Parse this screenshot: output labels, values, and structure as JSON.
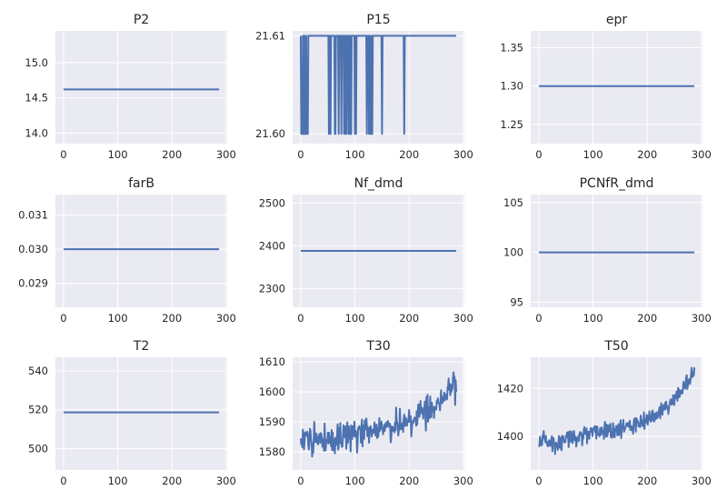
{
  "chart_data": [
    {
      "type": "line",
      "title": "P2",
      "xlim": [
        -15,
        302
      ],
      "ylim": [
        13.85,
        15.45
      ],
      "xticks": [
        0,
        100,
        200,
        300
      ],
      "yticks": [
        14.0,
        14.5,
        15.0
      ],
      "ytick_decimals": 1,
      "grid": true,
      "color": "#4c72b0",
      "pattern": "constant",
      "n": 288,
      "value": 14.62
    },
    {
      "type": "line",
      "title": "P15",
      "xlim": [
        -15,
        302
      ],
      "ylim": [
        21.599,
        21.6105
      ],
      "xticks": [
        0,
        100,
        200,
        300
      ],
      "yticks": [
        21.6,
        21.61
      ],
      "ytick_decimals": 2,
      "grid": true,
      "color": "#4c72b0",
      "pattern": "two_level",
      "n": 288,
      "high": 21.61,
      "low": 21.6,
      "low_indices": [
        1,
        2,
        3,
        5,
        7,
        9,
        11,
        12,
        13,
        52,
        55,
        63,
        64,
        70,
        75,
        80,
        83,
        84,
        88,
        91,
        93,
        100,
        102,
        122,
        126,
        129,
        130,
        132,
        150,
        191
      ]
    },
    {
      "type": "line",
      "title": "epr",
      "xlim": [
        -15,
        302
      ],
      "ylim": [
        1.225,
        1.372
      ],
      "xticks": [
        0,
        100,
        200,
        300
      ],
      "yticks": [
        1.25,
        1.3,
        1.35
      ],
      "ytick_decimals": 2,
      "grid": true,
      "color": "#4c72b0",
      "pattern": "constant",
      "n": 288,
      "value": 1.3
    },
    {
      "type": "line",
      "title": "farB",
      "xlim": [
        -15,
        302
      ],
      "ylim": [
        0.0283,
        0.0316
      ],
      "xticks": [
        0,
        100,
        200,
        300
      ],
      "yticks": [
        0.029,
        0.03,
        0.031
      ],
      "ytick_decimals": 3,
      "grid": true,
      "color": "#4c72b0",
      "pattern": "constant",
      "n": 288,
      "value": 0.03
    },
    {
      "type": "line",
      "title": "Nf_dmd",
      "xlim": [
        -15,
        302
      ],
      "ylim": [
        2256,
        2520
      ],
      "xticks": [
        0,
        100,
        200,
        300
      ],
      "yticks": [
        2300,
        2400,
        2500
      ],
      "ytick_decimals": 0,
      "grid": true,
      "color": "#4c72b0",
      "pattern": "constant",
      "n": 288,
      "value": 2388
    },
    {
      "type": "line",
      "title": "PCNfR_dmd",
      "xlim": [
        -15,
        302
      ],
      "ylim": [
        94.5,
        105.8
      ],
      "xticks": [
        0,
        100,
        200,
        300
      ],
      "yticks": [
        95,
        100,
        105
      ],
      "ytick_decimals": 0,
      "grid": true,
      "color": "#4c72b0",
      "pattern": "constant",
      "n": 288,
      "value": 100
    },
    {
      "type": "line",
      "title": "T2",
      "xlim": [
        -15,
        302
      ],
      "ylim": [
        489,
        547
      ],
      "xticks": [
        0,
        100,
        200,
        300
      ],
      "yticks": [
        500,
        520,
        540
      ],
      "ytick_decimals": 0,
      "grid": true,
      "color": "#4c72b0",
      "pattern": "constant",
      "n": 288,
      "value": 518.67
    },
    {
      "type": "line",
      "title": "T30",
      "xlim": [
        -15,
        302
      ],
      "ylim": [
        1574,
        1611.5
      ],
      "xticks": [
        0,
        100,
        200,
        300
      ],
      "yticks": [
        1580,
        1590,
        1600,
        1610
      ],
      "ytick_decimals": 0,
      "grid": true,
      "color": "#4c72b0",
      "pattern": "noisy_trend",
      "n": 288,
      "seed": 30,
      "noise": 4.8,
      "trend_points": [
        [
          0,
          1584
        ],
        [
          50,
          1584
        ],
        [
          100,
          1586
        ],
        [
          150,
          1588
        ],
        [
          200,
          1590
        ],
        [
          250,
          1596
        ],
        [
          287,
          1602
        ]
      ]
    },
    {
      "type": "line",
      "title": "T50",
      "xlim": [
        -15,
        302
      ],
      "ylim": [
        1386,
        1433
      ],
      "xticks": [
        0,
        100,
        200,
        300
      ],
      "yticks": [
        1400,
        1420
      ],
      "ytick_decimals": 0,
      "grid": true,
      "color": "#4c72b0",
      "pattern": "noisy_trend",
      "n": 288,
      "seed": 50,
      "noise": 3.6,
      "trend_points": [
        [
          0,
          1397
        ],
        [
          50,
          1398
        ],
        [
          100,
          1401
        ],
        [
          150,
          1403
        ],
        [
          200,
          1407
        ],
        [
          240,
          1413
        ],
        [
          270,
          1421
        ],
        [
          287,
          1427
        ]
      ]
    }
  ]
}
